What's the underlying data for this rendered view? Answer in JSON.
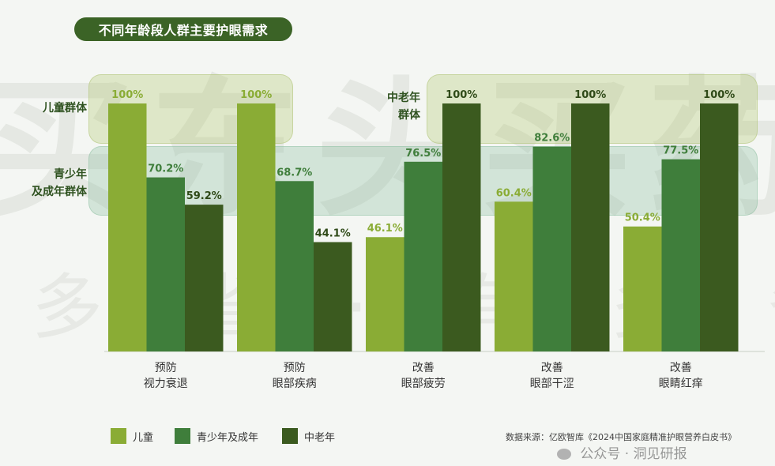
{
  "title": "不同年龄段人群主要护眼需求",
  "bands": {
    "child_label": "儿童群体",
    "teen_label_line1": "青少年",
    "teen_label_line2": "及成年群体",
    "elder_label_line1": "中老年",
    "elder_label_line2": "群体"
  },
  "watermark": {
    "top_line": "买东头买药",
    "bottom_line": "多 省 · 有 多 省"
  },
  "colors": {
    "child": "#8aac35",
    "teen": "#3f7e3b",
    "elder": "#3b5a1f",
    "title_bg": "#3b6326"
  },
  "chart_data": {
    "type": "bar",
    "categories": [
      [
        "预防",
        "视力衰退"
      ],
      [
        "预防",
        "眼部疾病"
      ],
      [
        "改善",
        "眼部疲劳"
      ],
      [
        "改善",
        "眼部干涩"
      ],
      [
        "改善",
        "眼睛红痒"
      ]
    ],
    "series": [
      {
        "name": "儿童",
        "values": [
          100,
          100,
          46.1,
          60.4,
          50.4
        ],
        "labels": [
          "100%",
          "100%",
          "46.1%",
          "60.4%",
          "50.4%"
        ]
      },
      {
        "name": "青少年及成年",
        "values": [
          70.2,
          68.7,
          76.5,
          82.6,
          77.5
        ],
        "labels": [
          "70.2%",
          "68.7%",
          "76.5%",
          "82.6%",
          "77.5%"
        ]
      },
      {
        "name": "中老年",
        "values": [
          59.2,
          44.1,
          100,
          100,
          100
        ],
        "labels": [
          "59.2%",
          "44.1%",
          "100%",
          "100%",
          "100%"
        ]
      }
    ],
    "ylim": [
      0,
      100
    ],
    "grid": false,
    "legend": "bottom-left"
  },
  "legend": {
    "items": [
      "儿童",
      "青少年及成年",
      "中老年"
    ]
  },
  "source": "数据来源：亿欧智库《2024中国家庭精准护眼营养白皮书》",
  "wechat": "公众号 · 洞见研报"
}
